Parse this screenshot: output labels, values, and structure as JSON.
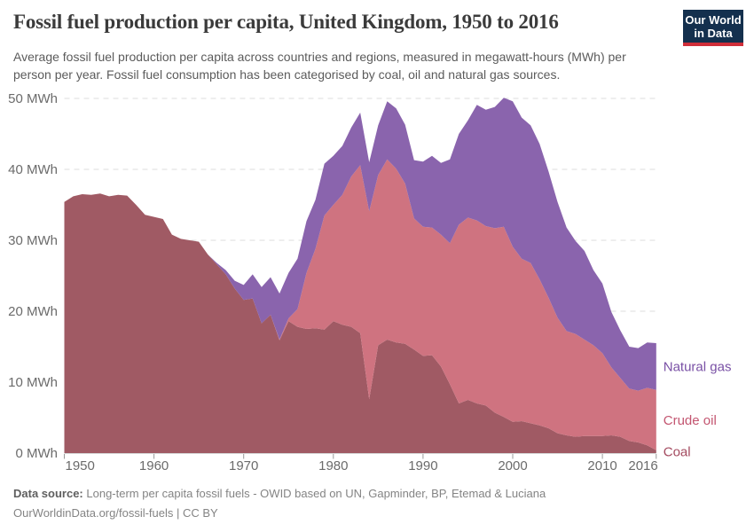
{
  "header": {
    "title": "Fossil fuel production per capita, United Kingdom, 1950 to 2016",
    "subtitle_line1": "Average fossil fuel production per capita across countries and regions, measured in megawatt-hours (MWh) per",
    "subtitle_line2": "person per year. Fossil fuel consumption has been categorised by coal, oil and natural gas sources.",
    "logo": {
      "line1": "Our World",
      "line2": "in Data",
      "bg": "#14304e",
      "stripe": "#d02e39"
    }
  },
  "footer": {
    "source_label": "Data source:",
    "source_text": "Long-term per capita fossil fuels - OWID based on UN, Gapminder, BP, Etemad & Luciana",
    "license_line": "OurWorldinData.org/fossil-fuels | CC BY"
  },
  "chart_data": {
    "type": "area",
    "stacked": true,
    "title": "Fossil fuel production per capita, United Kingdom, 1950 to 2016",
    "xlabel": "",
    "ylabel": "MWh per person per year",
    "ylim": [
      0,
      50
    ],
    "yticks": [
      0,
      10,
      20,
      30,
      40,
      50
    ],
    "ytick_suffix": " MWh",
    "xticks": [
      1950,
      1960,
      1970,
      1980,
      1990,
      2000,
      2010,
      2016
    ],
    "grid": "horizontal-dashed",
    "legend_position": "right",
    "x": [
      1950,
      1951,
      1952,
      1953,
      1954,
      1955,
      1956,
      1957,
      1958,
      1959,
      1960,
      1961,
      1962,
      1963,
      1964,
      1965,
      1966,
      1967,
      1968,
      1969,
      1970,
      1971,
      1972,
      1973,
      1974,
      1975,
      1976,
      1977,
      1978,
      1979,
      1980,
      1981,
      1982,
      1983,
      1984,
      1985,
      1986,
      1987,
      1988,
      1989,
      1990,
      1991,
      1992,
      1993,
      1994,
      1995,
      1996,
      1997,
      1998,
      1999,
      2000,
      2001,
      2002,
      2003,
      2004,
      2005,
      2006,
      2007,
      2008,
      2009,
      2010,
      2011,
      2012,
      2013,
      2014,
      2015,
      2016
    ],
    "series": [
      {
        "name": "Coal",
        "color": "#a05a64",
        "label_color": "#a34a5f",
        "values": [
          35.4,
          36.2,
          36.5,
          36.4,
          36.6,
          36.2,
          36.4,
          36.3,
          35.0,
          33.6,
          33.3,
          33.0,
          30.8,
          30.2,
          30.0,
          29.8,
          28.0,
          26.6,
          25.2,
          23.2,
          21.6,
          21.8,
          18.3,
          19.5,
          15.9,
          18.6,
          17.8,
          17.5,
          17.6,
          17.4,
          18.6,
          18.1,
          17.8,
          16.9,
          7.6,
          15.2,
          16.0,
          15.6,
          15.4,
          14.6,
          13.7,
          13.8,
          12.2,
          9.7,
          7.0,
          7.5,
          7.0,
          6.7,
          5.7,
          5.1,
          4.4,
          4.5,
          4.2,
          3.9,
          3.5,
          2.8,
          2.5,
          2.3,
          2.4,
          2.4,
          2.4,
          2.5,
          2.3,
          1.7,
          1.5,
          1.1,
          0.4
        ]
      },
      {
        "name": "Crude oil",
        "color": "#cf7380",
        "label_color": "#c35570",
        "values": [
          0,
          0,
          0,
          0,
          0,
          0,
          0,
          0,
          0,
          0,
          0,
          0,
          0,
          0,
          0,
          0,
          0,
          0,
          0,
          0,
          0,
          0,
          0,
          0,
          0.1,
          0.4,
          2.5,
          7.9,
          11.2,
          16.1,
          16.4,
          18.3,
          21.2,
          23.7,
          26.5,
          24.0,
          25.4,
          24.5,
          22.6,
          18.5,
          18.2,
          18.0,
          18.6,
          19.9,
          25.2,
          25.7,
          25.8,
          25.3,
          26.0,
          26.8,
          24.7,
          22.9,
          22.6,
          20.6,
          18.4,
          16.3,
          14.7,
          14.5,
          13.6,
          12.8,
          11.7,
          9.6,
          8.3,
          7.4,
          7.3,
          8.1,
          8.5
        ]
      },
      {
        "name": "Natural gas",
        "color": "#8a64ad",
        "label_color": "#7950a5",
        "values": [
          0,
          0,
          0,
          0,
          0,
          0,
          0,
          0,
          0,
          0,
          0,
          0,
          0,
          0,
          0,
          0,
          0,
          0.2,
          0.6,
          1.1,
          2.1,
          3.4,
          5.1,
          5.3,
          6.5,
          6.4,
          7.1,
          7.3,
          6.9,
          7.3,
          6.9,
          6.9,
          6.9,
          7.4,
          6.9,
          7.0,
          8.2,
          8.5,
          8.3,
          8.2,
          9.2,
          10.1,
          10.1,
          11.8,
          12.8,
          13.7,
          16.3,
          16.4,
          17.1,
          18.2,
          20.5,
          19.9,
          19.4,
          19.1,
          17.8,
          16.3,
          14.6,
          13.1,
          12.5,
          10.6,
          9.8,
          7.8,
          6.7,
          5.9,
          6.0,
          6.4,
          6.6
        ]
      }
    ]
  }
}
